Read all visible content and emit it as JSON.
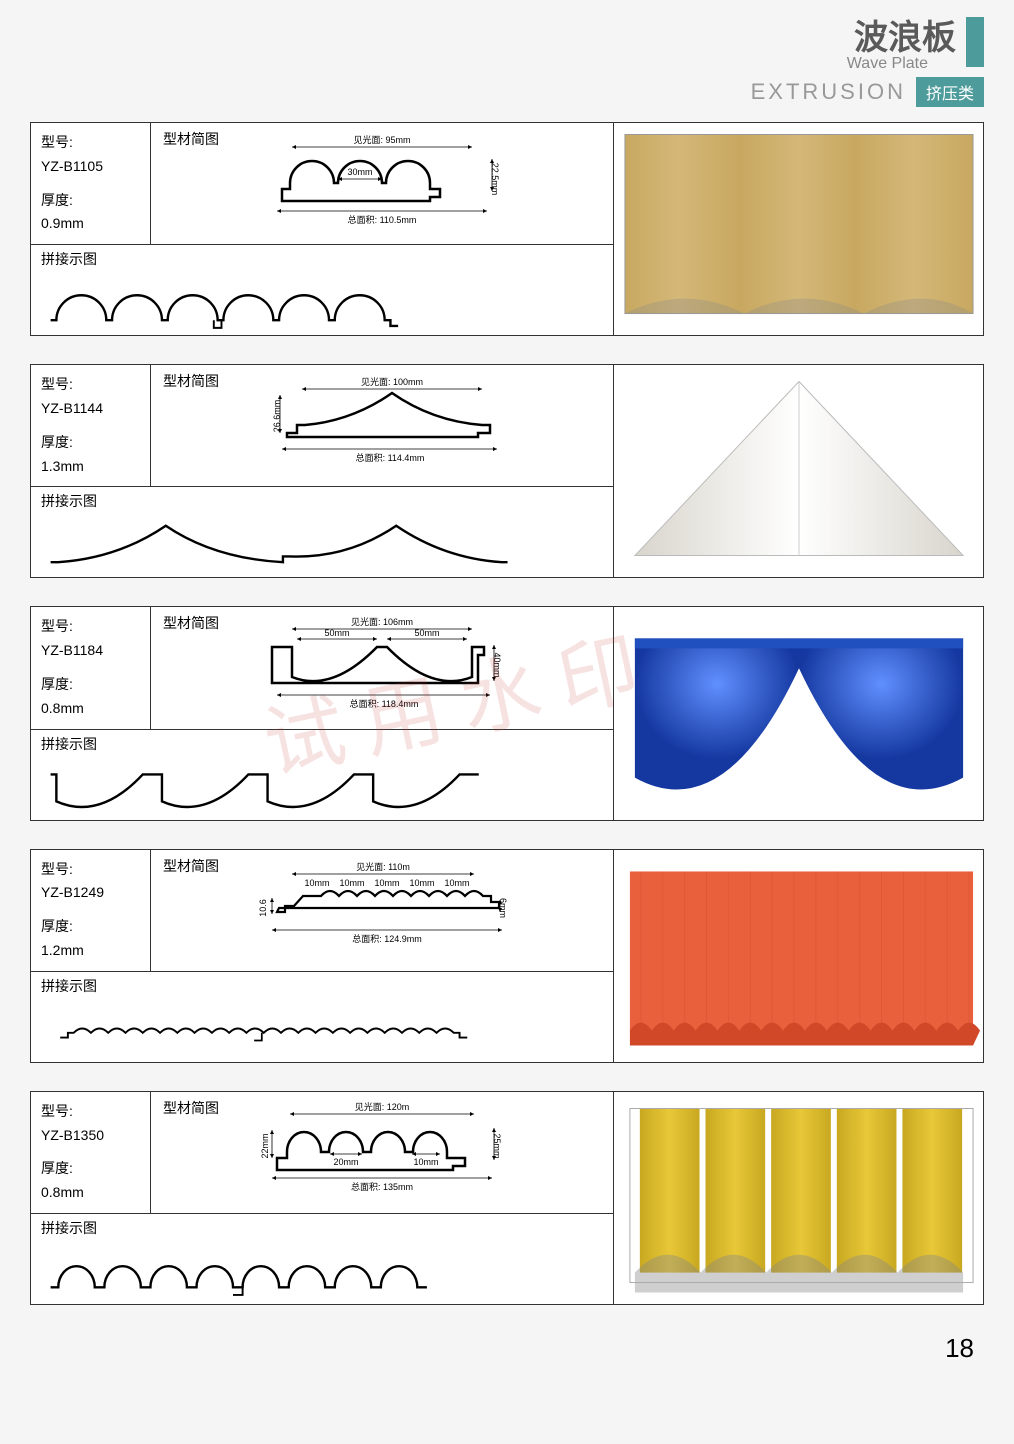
{
  "header": {
    "title_cn": "波浪板",
    "title_en": "Wave Plate",
    "category_en": "EXTRUSION",
    "category_cn": "挤压类",
    "accent_color": "#4d9b9b"
  },
  "labels": {
    "model": "型号:",
    "thickness": "厚度:",
    "profile_diagram": "型材简图",
    "joint_diagram": "拼接示图",
    "visible_face": "见光面:",
    "total_area": "总面积:"
  },
  "products": [
    {
      "model": "YZ-B1105",
      "thickness": "0.9mm",
      "visible_face": "95mm",
      "total_area": "110.5mm",
      "inner_dim": "30mm",
      "height": "22.5mm",
      "shape": "arches-3",
      "photo_color1": "#d4b878",
      "photo_color2": "#c8a860",
      "photo_type": "bamboo"
    },
    {
      "model": "YZ-B1144",
      "thickness": "1.3mm",
      "visible_face": "100mm",
      "total_area": "114.4mm",
      "height": "26.6mm",
      "shape": "peak",
      "photo_color1": "#f0ede4",
      "photo_color2": "#d8d5cc",
      "photo_type": "peak"
    },
    {
      "model": "YZ-B1184",
      "thickness": "0.8mm",
      "visible_face": "106mm",
      "total_area": "118.4mm",
      "inner_dim": "50mm",
      "inner_dim2": "50mm",
      "height": "40mm",
      "shape": "valleys-2",
      "photo_color1": "#2050c0",
      "photo_color2": "#1538a0",
      "photo_type": "valleys"
    },
    {
      "model": "YZ-B1249",
      "thickness": "1.2mm",
      "visible_face": "110m",
      "total_area": "124.9mm",
      "inner_dim": "10mm",
      "height": "10.6",
      "height2": "6mm",
      "shape": "corrugated",
      "photo_color1": "#e8603c",
      "photo_color2": "#d04828",
      "photo_type": "corrugated"
    },
    {
      "model": "YZ-B1350",
      "thickness": "0.8mm",
      "visible_face": "120m",
      "total_area": "135mm",
      "inner_dim": "20mm",
      "inner_dim2": "10mm",
      "height": "22mm",
      "height2": "25mm",
      "shape": "arches-4",
      "photo_color1": "#e8c838",
      "photo_color2": "#c8a820",
      "photo_type": "gold-arches"
    }
  ],
  "page_number": "18",
  "watermark": "试用水印"
}
